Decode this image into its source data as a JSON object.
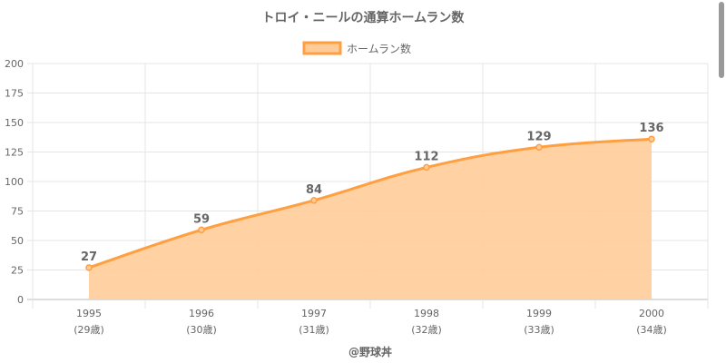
{
  "chart_data": {
    "type": "area",
    "title": "トロイ・ニールの通算ホームラン数",
    "categories": [
      "1995",
      "1996",
      "1997",
      "1998",
      "1999",
      "2000"
    ],
    "sublabels": [
      "(29歳)",
      "(30歳)",
      "(31歳)",
      "(32歳)",
      "(33歳)",
      "(34歳)"
    ],
    "series": [
      {
        "name": "ホームラン数",
        "values": [
          27,
          59,
          84,
          112,
          129,
          136
        ]
      }
    ],
    "ylim": [
      0,
      200
    ],
    "yticks": [
      0,
      25,
      50,
      75,
      100,
      125,
      150,
      175,
      200
    ],
    "grid": true,
    "legend": "top",
    "colors": {
      "line": "#ff9f40",
      "fill": "#ffcc99"
    },
    "footer": "@野球丼"
  }
}
